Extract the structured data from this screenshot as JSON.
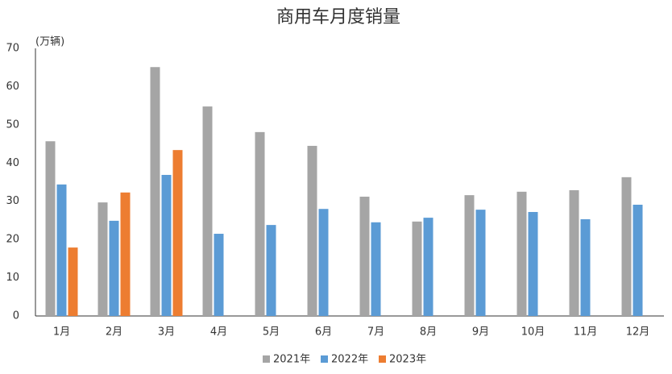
{
  "chart_data": {
    "type": "bar",
    "title": "商用车月度销量",
    "y_label": "(万辆)",
    "categories": [
      "1月",
      "2月",
      "3月",
      "4月",
      "5月",
      "6月",
      "7月",
      "8月",
      "9月",
      "10月",
      "11月",
      "12月"
    ],
    "series": [
      {
        "name": "2021年",
        "color": "#a5a5a5",
        "values": [
          45.7,
          29.7,
          65.1,
          54.8,
          48.1,
          44.5,
          31.2,
          24.7,
          31.6,
          32.5,
          32.9,
          36.3
        ]
      },
      {
        "name": "2022年",
        "color": "#5b9bd5",
        "values": [
          34.4,
          24.9,
          36.9,
          21.5,
          23.8,
          28.0,
          24.5,
          25.7,
          27.8,
          27.2,
          25.3,
          29.1
        ]
      },
      {
        "name": "2023年",
        "color": "#ed7d31",
        "values": [
          17.9,
          32.3,
          43.4,
          null,
          null,
          null,
          null,
          null,
          null,
          null,
          null,
          null
        ]
      }
    ],
    "ylim": [
      0,
      70
    ],
    "yticks": [
      0,
      10,
      20,
      30,
      40,
      50,
      60,
      70
    ],
    "grid": false,
    "legend": "bottom"
  }
}
